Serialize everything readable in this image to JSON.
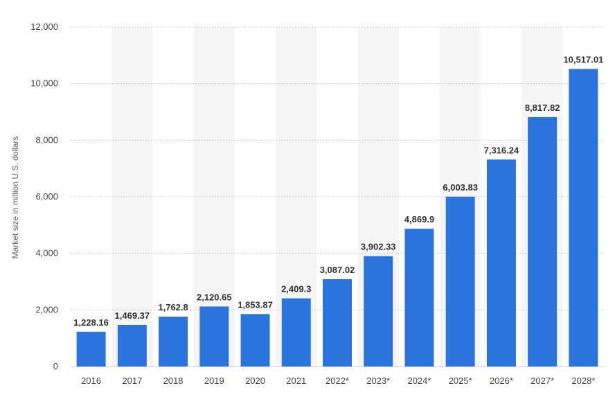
{
  "chart_data": {
    "type": "bar",
    "title": "",
    "xlabel": "",
    "ylabel": "Market size in million U.S. dollars",
    "categories": [
      "2016",
      "2017",
      "2018",
      "2019",
      "2020",
      "2021",
      "2022*",
      "2023*",
      "2024*",
      "2025*",
      "2026*",
      "2027*",
      "2028*"
    ],
    "values": [
      1228.16,
      1469.37,
      1762.8,
      2120.65,
      1853.87,
      2409.3,
      3087.02,
      3902.33,
      4869.9,
      6003.83,
      7316.24,
      8817.82,
      10517.01
    ],
    "value_labels": [
      "1,228.16",
      "1,469.37",
      "1,762.8",
      "2,120.65",
      "1,853.87",
      "2,409.3",
      "3,087.02",
      "3,902.33",
      "4,869.9",
      "6,003.83",
      "7,316.24",
      "8,817.82",
      "10,517.01"
    ],
    "ylim": [
      0,
      12000
    ],
    "yticks": [
      0,
      2000,
      4000,
      6000,
      8000,
      10000,
      12000
    ],
    "ytick_labels": [
      "0",
      "2,000",
      "4,000",
      "6,000",
      "8,000",
      "10,000",
      "12,000"
    ],
    "grid": true,
    "bar_color": "#2b74de",
    "band_color": "#f5f5f5",
    "grid_color": "#c8c8c8"
  }
}
